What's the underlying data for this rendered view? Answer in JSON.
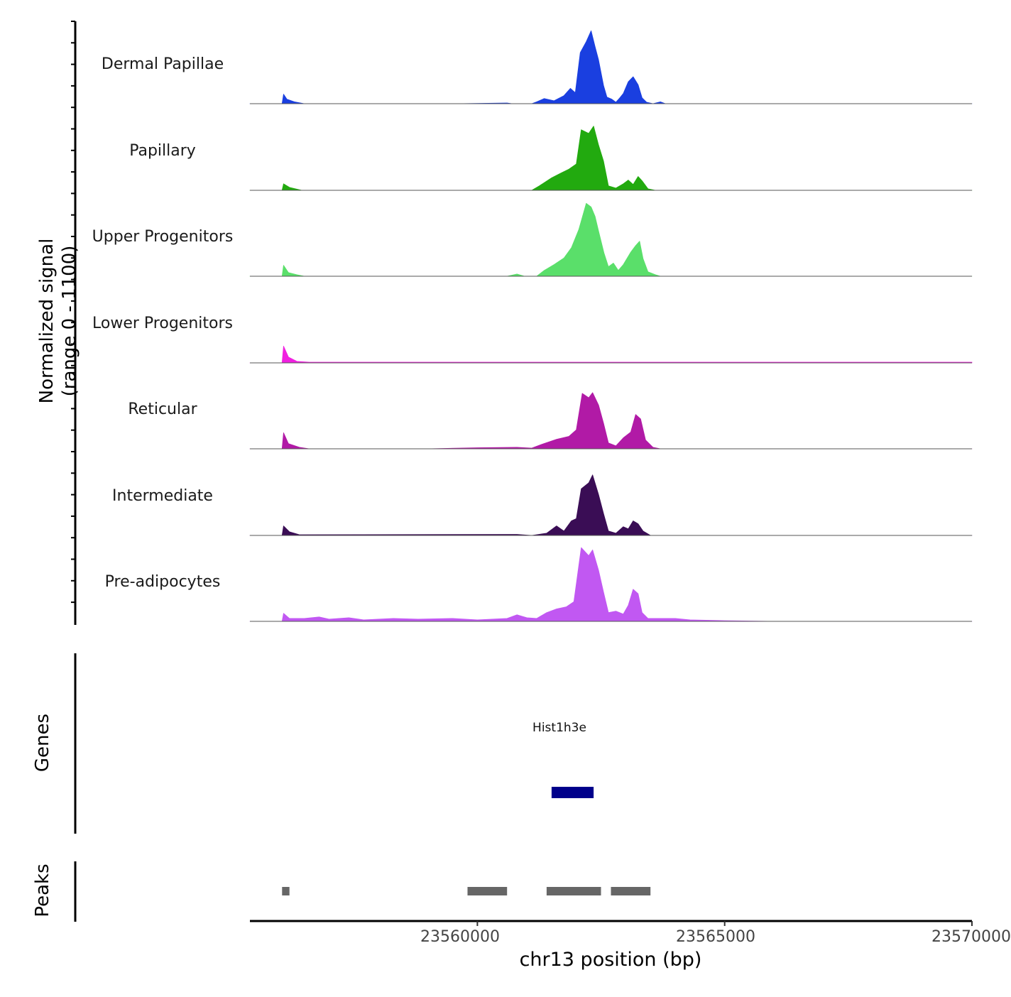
{
  "chart_data": {
    "type": "area",
    "title": "",
    "ylabel_line1": "Normalized signal",
    "ylabel_line2": "(range 0 - 1100)",
    "y_range": [
      0,
      1100
    ],
    "xlabel": "chr13 position (bp)",
    "chromosome": "chr13",
    "xlim": [
      23555400,
      23570000
    ],
    "x_ticks": [
      {
        "value": 23560000,
        "label": "23560000"
      },
      {
        "value": 23565000,
        "label": "23565000"
      },
      {
        "value": 23570000,
        "label": "23570000"
      }
    ],
    "tracks": [
      {
        "name": "Dermal Papillae",
        "color": "#1a3fe0",
        "points": [
          [
            23555400,
            0
          ],
          [
            23556050,
            0
          ],
          [
            23556080,
            130
          ],
          [
            23556150,
            60
          ],
          [
            23556300,
            25
          ],
          [
            23556500,
            0
          ],
          [
            23559600,
            0
          ],
          [
            23560600,
            10
          ],
          [
            23560700,
            0
          ],
          [
            23561100,
            0
          ],
          [
            23561200,
            25
          ],
          [
            23561350,
            70
          ],
          [
            23561550,
            40
          ],
          [
            23561750,
            110
          ],
          [
            23561880,
            210
          ],
          [
            23561980,
            150
          ],
          [
            23562080,
            700
          ],
          [
            23562200,
            850
          ],
          [
            23562300,
            1000
          ],
          [
            23562380,
            780
          ],
          [
            23562450,
            600
          ],
          [
            23562550,
            250
          ],
          [
            23562620,
            90
          ],
          [
            23562720,
            60
          ],
          [
            23562800,
            20
          ],
          [
            23562880,
            80
          ],
          [
            23562950,
            140
          ],
          [
            23563050,
            300
          ],
          [
            23563150,
            370
          ],
          [
            23563250,
            260
          ],
          [
            23563330,
            80
          ],
          [
            23563420,
            20
          ],
          [
            23563550,
            0
          ],
          [
            23563700,
            25
          ],
          [
            23563800,
            0
          ],
          [
            23570000,
            0
          ]
        ]
      },
      {
        "name": "Papillary",
        "color": "#22aa0f",
        "points": [
          [
            23555400,
            0
          ],
          [
            23556050,
            0
          ],
          [
            23556080,
            90
          ],
          [
            23556200,
            40
          ],
          [
            23556450,
            0
          ],
          [
            23561100,
            0
          ],
          [
            23561250,
            60
          ],
          [
            23561500,
            170
          ],
          [
            23561700,
            240
          ],
          [
            23561850,
            290
          ],
          [
            23562000,
            360
          ],
          [
            23562100,
            830
          ],
          [
            23562250,
            780
          ],
          [
            23562350,
            880
          ],
          [
            23562450,
            620
          ],
          [
            23562550,
            400
          ],
          [
            23562650,
            60
          ],
          [
            23562800,
            30
          ],
          [
            23562950,
            90
          ],
          [
            23563050,
            140
          ],
          [
            23563150,
            80
          ],
          [
            23563250,
            190
          ],
          [
            23563330,
            130
          ],
          [
            23563450,
            20
          ],
          [
            23563600,
            0
          ],
          [
            23570000,
            0
          ]
        ]
      },
      {
        "name": "Upper Progenitors",
        "color": "#5adf6a",
        "points": [
          [
            23555400,
            0
          ],
          [
            23556050,
            0
          ],
          [
            23556080,
            150
          ],
          [
            23556180,
            50
          ],
          [
            23556350,
            20
          ],
          [
            23556500,
            0
          ],
          [
            23560600,
            0
          ],
          [
            23560800,
            30
          ],
          [
            23560950,
            0
          ],
          [
            23561200,
            0
          ],
          [
            23561350,
            80
          ],
          [
            23561550,
            160
          ],
          [
            23561750,
            250
          ],
          [
            23561900,
            390
          ],
          [
            23562050,
            640
          ],
          [
            23562200,
            1000
          ],
          [
            23562300,
            950
          ],
          [
            23562380,
            820
          ],
          [
            23562450,
            620
          ],
          [
            23562560,
            320
          ],
          [
            23562650,
            130
          ],
          [
            23562750,
            180
          ],
          [
            23562850,
            80
          ],
          [
            23562950,
            160
          ],
          [
            23563100,
            330
          ],
          [
            23563200,
            420
          ],
          [
            23563280,
            480
          ],
          [
            23563350,
            240
          ],
          [
            23563450,
            60
          ],
          [
            23563600,
            20
          ],
          [
            23563700,
            0
          ],
          [
            23570000,
            0
          ]
        ]
      },
      {
        "name": "Lower Progenitors",
        "color": "#f020e0",
        "points": [
          [
            23555400,
            0
          ],
          [
            23556050,
            0
          ],
          [
            23556080,
            230
          ],
          [
            23556180,
            80
          ],
          [
            23556350,
            20
          ],
          [
            23556600,
            10
          ],
          [
            23570000,
            10
          ],
          [
            23570000,
            0
          ]
        ]
      },
      {
        "name": "Reticular",
        "color": "#b11aa6",
        "points": [
          [
            23555400,
            0
          ],
          [
            23556050,
            0
          ],
          [
            23556080,
            220
          ],
          [
            23556180,
            70
          ],
          [
            23556400,
            20
          ],
          [
            23556600,
            0
          ],
          [
            23559000,
            0
          ],
          [
            23560000,
            15
          ],
          [
            23560800,
            20
          ],
          [
            23561100,
            10
          ],
          [
            23561300,
            60
          ],
          [
            23561600,
            130
          ],
          [
            23561850,
            170
          ],
          [
            23562000,
            260
          ],
          [
            23562120,
            760
          ],
          [
            23562250,
            700
          ],
          [
            23562330,
            770
          ],
          [
            23562450,
            600
          ],
          [
            23562550,
            350
          ],
          [
            23562650,
            80
          ],
          [
            23562800,
            40
          ],
          [
            23562950,
            150
          ],
          [
            23563100,
            230
          ],
          [
            23563200,
            470
          ],
          [
            23563300,
            410
          ],
          [
            23563400,
            120
          ],
          [
            23563550,
            20
          ],
          [
            23563700,
            0
          ],
          [
            23570000,
            0
          ]
        ]
      },
      {
        "name": "Intermediate",
        "color": "#3a0d55",
        "points": [
          [
            23555400,
            0
          ],
          [
            23556050,
            0
          ],
          [
            23556080,
            130
          ],
          [
            23556200,
            50
          ],
          [
            23556400,
            10
          ],
          [
            23560800,
            15
          ],
          [
            23561100,
            0
          ],
          [
            23561400,
            30
          ],
          [
            23561600,
            130
          ],
          [
            23561750,
            60
          ],
          [
            23561900,
            200
          ],
          [
            23562000,
            230
          ],
          [
            23562100,
            640
          ],
          [
            23562250,
            720
          ],
          [
            23562330,
            830
          ],
          [
            23562450,
            560
          ],
          [
            23562550,
            300
          ],
          [
            23562650,
            60
          ],
          [
            23562800,
            30
          ],
          [
            23562950,
            120
          ],
          [
            23563050,
            90
          ],
          [
            23563150,
            200
          ],
          [
            23563250,
            160
          ],
          [
            23563350,
            60
          ],
          [
            23563500,
            0
          ],
          [
            23570000,
            0
          ]
        ]
      },
      {
        "name": "Pre-adipocytes",
        "color": "#c158f2",
        "points": [
          [
            23555400,
            0
          ],
          [
            23556050,
            0
          ],
          [
            23556080,
            110
          ],
          [
            23556200,
            40
          ],
          [
            23556500,
            40
          ],
          [
            23556800,
            60
          ],
          [
            23557000,
            30
          ],
          [
            23557400,
            50
          ],
          [
            23557700,
            20
          ],
          [
            23558300,
            40
          ],
          [
            23558800,
            30
          ],
          [
            23559500,
            40
          ],
          [
            23560000,
            20
          ],
          [
            23560600,
            40
          ],
          [
            23560800,
            90
          ],
          [
            23561000,
            50
          ],
          [
            23561200,
            40
          ],
          [
            23561400,
            120
          ],
          [
            23561600,
            170
          ],
          [
            23561800,
            200
          ],
          [
            23561950,
            270
          ],
          [
            23562100,
            1010
          ],
          [
            23562250,
            900
          ],
          [
            23562330,
            980
          ],
          [
            23562450,
            700
          ],
          [
            23562550,
            400
          ],
          [
            23562650,
            120
          ],
          [
            23562800,
            140
          ],
          [
            23562950,
            100
          ],
          [
            23563050,
            220
          ],
          [
            23563150,
            440
          ],
          [
            23563250,
            380
          ],
          [
            23563330,
            120
          ],
          [
            23563450,
            40
          ],
          [
            23564000,
            40
          ],
          [
            23564300,
            20
          ],
          [
            23565000,
            10
          ],
          [
            23566000,
            0
          ],
          [
            23570000,
            0
          ]
        ]
      }
    ],
    "genes_track": {
      "label": "Genes",
      "genes": [
        {
          "name": "Hist1h3e",
          "start": 23561500,
          "end": 23562350,
          "color": "#00008b"
        }
      ]
    },
    "peaks_track": {
      "label": "Peaks",
      "color": "#666666",
      "peaks": [
        [
          23556050,
          23556200
        ],
        [
          23559800,
          23560600
        ],
        [
          23561400,
          23562500
        ],
        [
          23562700,
          23563500
        ]
      ]
    }
  }
}
